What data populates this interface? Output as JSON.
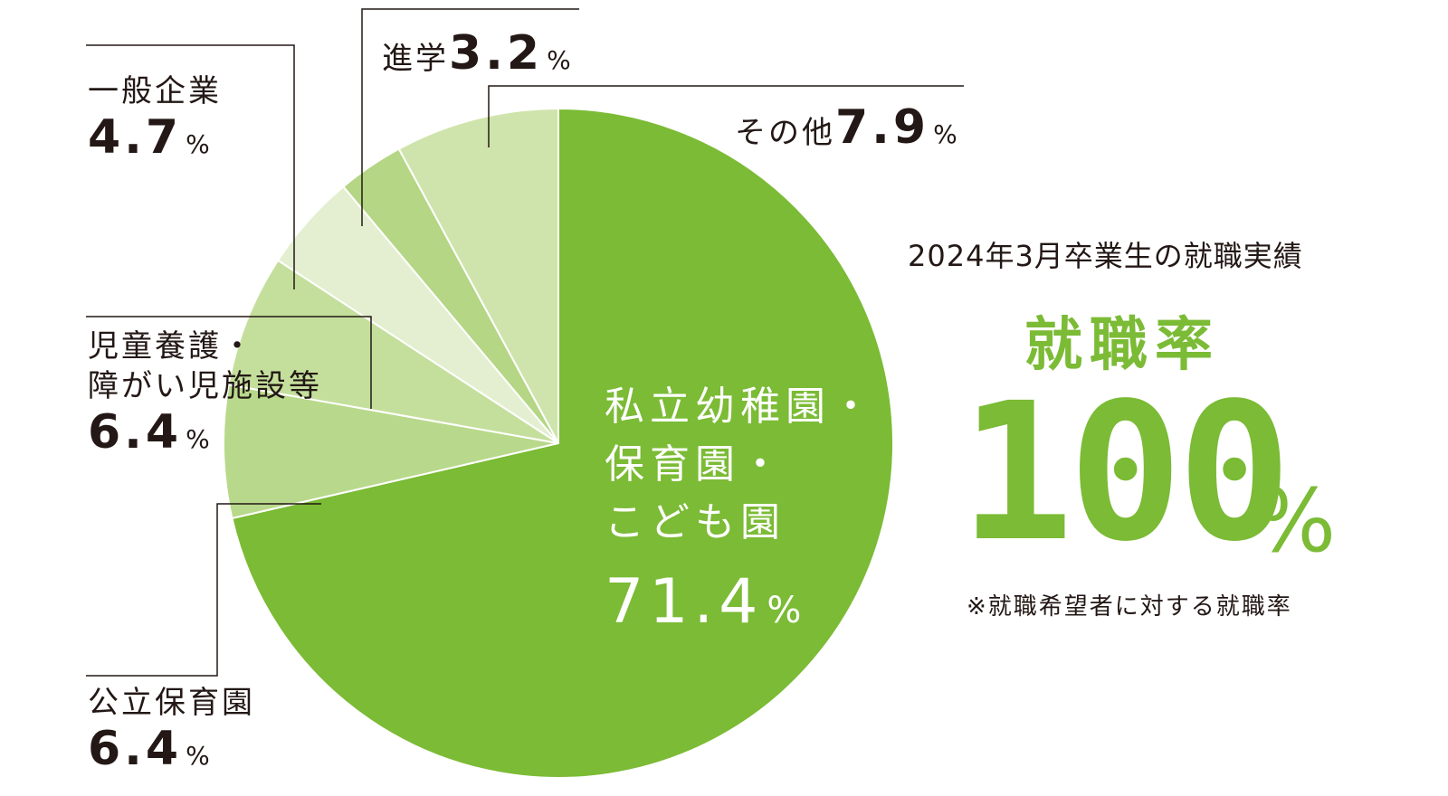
{
  "chart_data": {
    "type": "pie",
    "title": "",
    "start_angle": "top, clockwise",
    "slices": [
      {
        "name": "私立幼稚園・保育園・こども園",
        "name_lines": [
          "私立幼稚園・",
          "保育園・",
          "こども園"
        ],
        "value": 71.4,
        "color": "#7bbb35"
      },
      {
        "name": "公立保育園",
        "name_lines": [
          "公立保育園"
        ],
        "value": 6.4,
        "color": "#b8d98b"
      },
      {
        "name": "児童養護・障がい児施設等",
        "name_lines": [
          "児童養護・",
          "障がい児施設等"
        ],
        "value": 6.4,
        "color": "#c4df9c"
      },
      {
        "name": "一般企業",
        "name_lines": [
          "一般企業"
        ],
        "value": 4.7,
        "color": "#e3efd0"
      },
      {
        "name": "進学",
        "name_lines": [
          "進学"
        ],
        "value": 3.2,
        "color": "#b4d685"
      },
      {
        "name": "その他",
        "name_lines": [
          "その他"
        ],
        "value": 7.9,
        "color": "#cfe4ac"
      }
    ],
    "unit": "%"
  },
  "labels": {
    "private": {
      "line1": "私立幼稚園・",
      "line2": "保育園・",
      "line3": "こども園",
      "value": "71.4",
      "unit": "%"
    },
    "public": {
      "line1": "公立保育園",
      "value": "6.4",
      "unit": "%"
    },
    "welfare": {
      "line1": "児童養護・",
      "line2": "障がい児施設等",
      "value": "6.4",
      "unit": "%"
    },
    "company": {
      "line1": "一般企業",
      "value": "4.7",
      "unit": "%"
    },
    "further": {
      "line1": "進学",
      "value": "3.2",
      "unit": "%"
    },
    "other": {
      "line1": "その他",
      "value": "7.9",
      "unit": "%"
    }
  },
  "summary": {
    "title": "2024年3月卒業生の就職実績",
    "rate_label": "就職率",
    "rate_value": "100",
    "rate_unit": "%",
    "footnote": "※就職希望者に対する就職率"
  },
  "colors": {
    "accent": "#7bbb35",
    "text": "#231815",
    "leader": "#231815"
  }
}
